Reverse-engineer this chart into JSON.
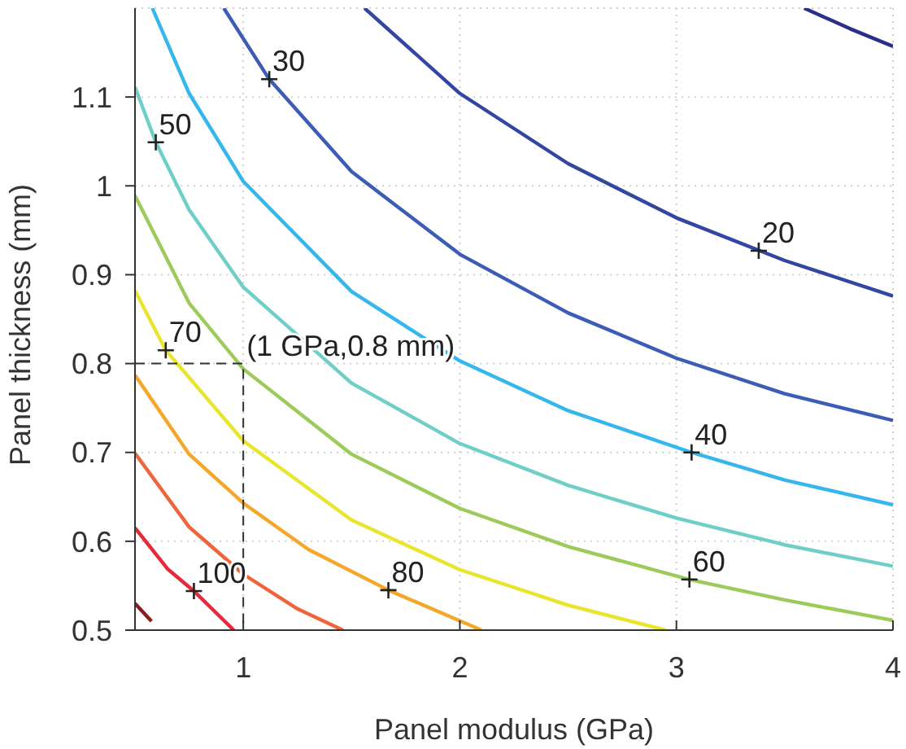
{
  "chart_data": {
    "type": "line",
    "xlabel": "Panel modulus (GPa)",
    "ylabel": "Panel thickness (mm)",
    "xlim": [
      0.5,
      4
    ],
    "ylim": [
      0.5,
      1.2
    ],
    "xticks": [
      1,
      2,
      3,
      4
    ],
    "yticks": [
      0.5,
      0.6,
      0.7,
      0.8,
      0.9,
      1,
      1.1
    ],
    "grid": true,
    "marker": "none",
    "series": [
      {
        "color": "#2b2f8c",
        "x": [
          3.59,
          3.8,
          4
        ],
        "values": [
          1.2,
          1.177,
          1.157
        ]
      },
      {
        "color": "#3446a3",
        "x": [
          1.56,
          2,
          2.5,
          3,
          3.5,
          4
        ],
        "values": [
          1.2,
          1.104,
          1.025,
          0.964,
          0.916,
          0.876
        ]
      },
      {
        "color": "#3d5cb5",
        "x": [
          0.91,
          1.12,
          1.5,
          2,
          2.5,
          3,
          3.5,
          4
        ],
        "values": [
          1.2,
          1.12,
          1.016,
          0.923,
          0.857,
          0.806,
          0.766,
          0.736
        ]
      },
      {
        "color": "#35b6ec",
        "x": [
          0.58,
          0.75,
          1,
          1.5,
          2,
          2.5,
          3.07,
          3.5,
          4
        ],
        "values": [
          1.2,
          1.104,
          1.005,
          0.881,
          0.803,
          0.747,
          0.7,
          0.669,
          0.641
        ]
      },
      {
        "color": "#6fcfc8",
        "x": [
          0.5,
          0.596,
          0.75,
          1,
          1.5,
          2,
          2.5,
          3,
          3.5,
          4
        ],
        "values": [
          1.111,
          1.049,
          0.973,
          0.886,
          0.778,
          0.71,
          0.663,
          0.626,
          0.596,
          0.572
        ]
      },
      {
        "color": "#9dcb5b",
        "x": [
          0.5,
          0.75,
          1,
          1.5,
          2,
          2.5,
          3.06,
          3.5,
          4
        ],
        "values": [
          0.989,
          0.868,
          0.794,
          0.698,
          0.637,
          0.594,
          0.557,
          0.534,
          0.511
        ]
      },
      {
        "color": "#e9e52c",
        "x": [
          0.5,
          0.642,
          1,
          1.5,
          2,
          2.5,
          2.95
        ],
        "values": [
          0.882,
          0.815,
          0.713,
          0.624,
          0.568,
          0.528,
          0.5
        ]
      },
      {
        "color": "#f5a72a",
        "x": [
          0.5,
          0.75,
          1,
          1.3,
          1.67,
          2.1
        ],
        "values": [
          0.787,
          0.698,
          0.643,
          0.591,
          0.545,
          0.5
        ]
      },
      {
        "color": "#f0643c",
        "x": [
          0.5,
          0.75,
          1,
          1.25,
          1.46
        ],
        "values": [
          0.699,
          0.616,
          0.563,
          0.524,
          0.5
        ]
      },
      {
        "color": "#e52a3c",
        "x": [
          0.5,
          0.65,
          0.772,
          0.956
        ],
        "values": [
          0.615,
          0.569,
          0.544,
          0.5
        ]
      },
      {
        "color": "#8c1c1c",
        "x": [
          0.5,
          0.576
        ],
        "values": [
          0.53,
          0.51
        ]
      },
      {
        "color": "#333333",
        "line_style": "dashed",
        "x": [
          0.5,
          1,
          1
        ],
        "values": [
          0.8,
          0.8,
          0.5
        ]
      },
      {
        "type": "scatter",
        "marker": "cross",
        "color": "#222222",
        "x": [
          1.12,
          0.596,
          3.38,
          0.642,
          3.07,
          3.06,
          0.772,
          1.67
        ],
        "values": [
          1.12,
          1.049,
          0.927,
          0.815,
          0.7,
          0.557,
          0.544,
          0.545
        ]
      }
    ],
    "annotations": [
      {
        "text": "30",
        "x": 1.12,
        "y": 1.12
      },
      {
        "text": "50",
        "x": 0.596,
        "y": 1.049
      },
      {
        "text": "20",
        "x": 3.38,
        "y": 0.927
      },
      {
        "text": "70",
        "x": 0.642,
        "y": 0.815
      },
      {
        "text": "(1 GPa,0.8 mm)",
        "x": 1,
        "y": 0.8
      },
      {
        "text": "40",
        "x": 3.07,
        "y": 0.7
      },
      {
        "text": "60",
        "x": 3.06,
        "y": 0.557
      },
      {
        "text": "100",
        "x": 0.772,
        "y": 0.544
      },
      {
        "text": "80",
        "x": 1.67,
        "y": 0.545
      }
    ]
  }
}
